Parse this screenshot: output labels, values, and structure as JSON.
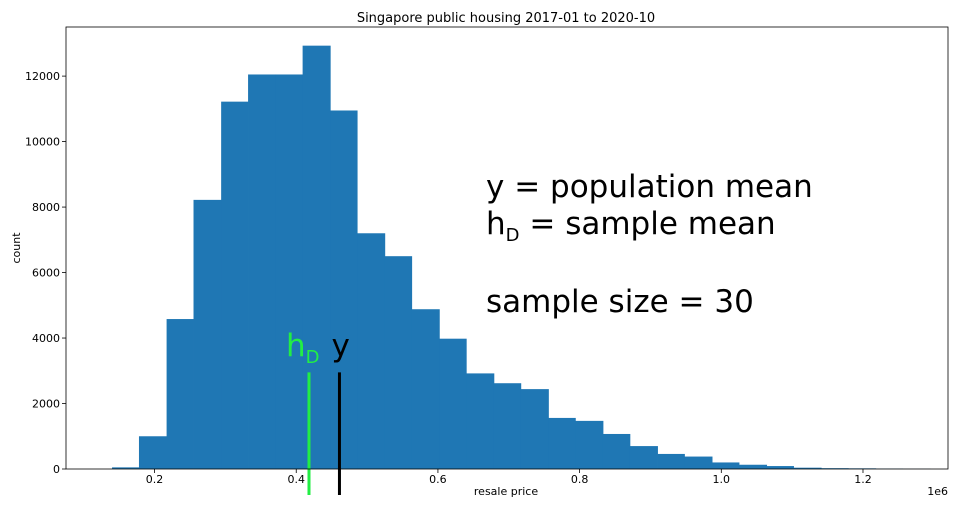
{
  "chart_data": {
    "type": "bar",
    "title": "Singapore public housing 2017-01 to 2020-10",
    "xlabel": "resale price",
    "ylabel": "count",
    "x_offset_label": "1e6",
    "xlim": [
      0.075,
      1.32
    ],
    "ylim": [
      0,
      13500
    ],
    "x_ticks": [
      0.2,
      0.4,
      0.6,
      0.8,
      1.0,
      1.2
    ],
    "x_tick_labels": [
      "0.2",
      "0.4",
      "0.6",
      "0.8",
      "1.0",
      "1.2"
    ],
    "y_ticks": [
      0,
      2000,
      4000,
      6000,
      8000,
      10000,
      12000
    ],
    "y_tick_labels": [
      "0",
      "2000",
      "4000",
      "6000",
      "8000",
      "10000",
      "12000"
    ],
    "bar_color": "#1f77b4",
    "grid": false,
    "bins": [
      {
        "start": 0.14,
        "end": 0.178,
        "count": 50
      },
      {
        "start": 0.178,
        "end": 0.217,
        "count": 1000
      },
      {
        "start": 0.217,
        "end": 0.255,
        "count": 4580
      },
      {
        "start": 0.255,
        "end": 0.294,
        "count": 8220
      },
      {
        "start": 0.294,
        "end": 0.332,
        "count": 11220
      },
      {
        "start": 0.332,
        "end": 0.371,
        "count": 12050
      },
      {
        "start": 0.371,
        "end": 0.409,
        "count": 12050
      },
      {
        "start": 0.409,
        "end": 0.448,
        "count": 12930
      },
      {
        "start": 0.448,
        "end": 0.486,
        "count": 10950
      },
      {
        "start": 0.486,
        "end": 0.525,
        "count": 7200
      },
      {
        "start": 0.525,
        "end": 0.563,
        "count": 6500
      },
      {
        "start": 0.563,
        "end": 0.602,
        "count": 4880
      },
      {
        "start": 0.602,
        "end": 0.64,
        "count": 3980
      },
      {
        "start": 0.64,
        "end": 0.679,
        "count": 2920
      },
      {
        "start": 0.679,
        "end": 0.717,
        "count": 2620
      },
      {
        "start": 0.717,
        "end": 0.756,
        "count": 2440
      },
      {
        "start": 0.756,
        "end": 0.794,
        "count": 1560
      },
      {
        "start": 0.794,
        "end": 0.833,
        "count": 1470
      },
      {
        "start": 0.833,
        "end": 0.871,
        "count": 1070
      },
      {
        "start": 0.871,
        "end": 0.91,
        "count": 700
      },
      {
        "start": 0.91,
        "end": 0.948,
        "count": 460
      },
      {
        "start": 0.948,
        "end": 0.987,
        "count": 380
      },
      {
        "start": 0.987,
        "end": 1.025,
        "count": 200
      },
      {
        "start": 1.025,
        "end": 1.064,
        "count": 130
      },
      {
        "start": 1.064,
        "end": 1.102,
        "count": 90
      },
      {
        "start": 1.102,
        "end": 1.141,
        "count": 40
      },
      {
        "start": 1.141,
        "end": 1.179,
        "count": 25
      },
      {
        "start": 1.179,
        "end": 1.218,
        "count": 20
      },
      {
        "start": 1.218,
        "end": 1.256,
        "count": 10
      },
      {
        "start": 1.256,
        "end": 1.295,
        "count": 5
      }
    ],
    "markers": [
      {
        "label": "h",
        "label_sub": "D",
        "x": 0.418,
        "top": 2950,
        "color": "#22ee44"
      },
      {
        "label": "y",
        "label_sub": "",
        "x": 0.461,
        "top": 2950,
        "color": "#000000"
      }
    ],
    "annotations": [
      {
        "line": "y  = population mean"
      },
      {
        "line": "h",
        "sub": "D",
        "rest": " = sample mean"
      },
      {
        "line": "sample size = 30"
      }
    ]
  }
}
